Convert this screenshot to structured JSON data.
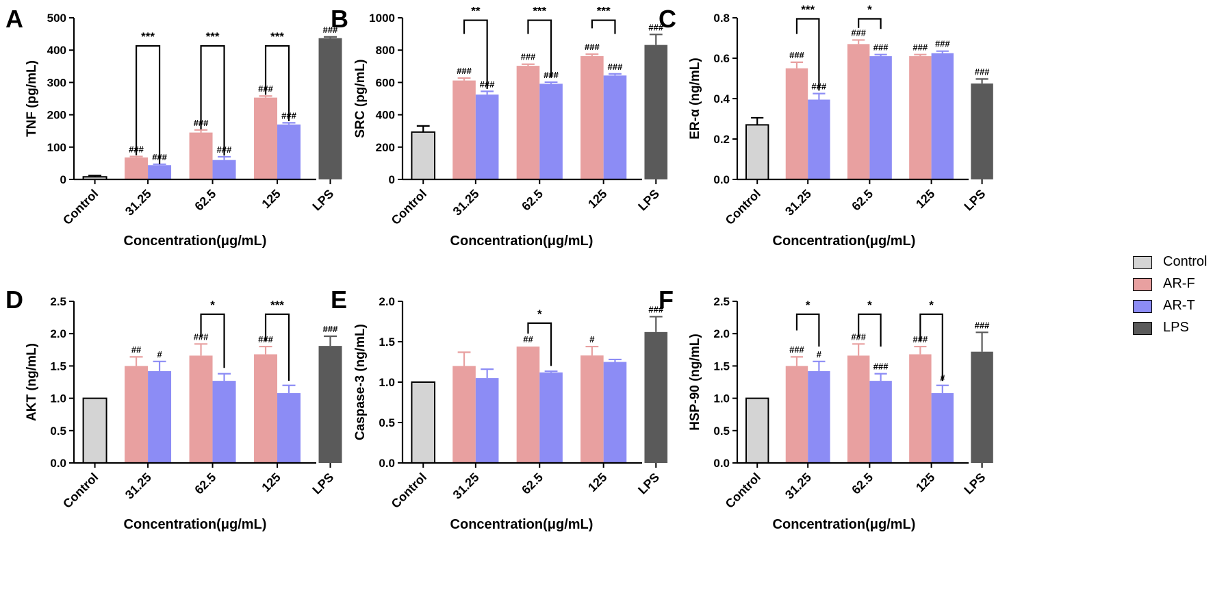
{
  "colors": {
    "Control": "#d4d4d4",
    "AR-F": "#e8a0a0",
    "AR-T": "#8c8cf5",
    "LPS": "#5a5a5a"
  },
  "legend": [
    "Control",
    "AR-F",
    "AR-T",
    "LPS"
  ],
  "chart_data": [
    {
      "panel": "A",
      "type": "bar",
      "ylabel": "TNF (pg/mL)",
      "xlabel": "Concentration(μg/mL)",
      "ylim": [
        0,
        500
      ],
      "yticks": [
        "0",
        "100",
        "200",
        "300",
        "400",
        "500"
      ],
      "categories": [
        "Control",
        "31.25",
        "62.5",
        "125",
        "LPS"
      ],
      "bars": [
        {
          "group": 0,
          "series": "Control",
          "value": 8,
          "err": 4,
          "label": ""
        },
        {
          "group": 1,
          "series": "AR-F",
          "value": 68,
          "err": 3,
          "label": "###"
        },
        {
          "group": 1,
          "series": "AR-T",
          "value": 44,
          "err": 3,
          "label": "###"
        },
        {
          "group": 2,
          "series": "AR-F",
          "value": 145,
          "err": 8,
          "label": "###"
        },
        {
          "group": 2,
          "series": "AR-T",
          "value": 60,
          "err": 10,
          "label": "###"
        },
        {
          "group": 3,
          "series": "AR-F",
          "value": 253,
          "err": 5,
          "label": "###"
        },
        {
          "group": 3,
          "series": "AR-T",
          "value": 170,
          "err": 5,
          "label": "###"
        },
        {
          "group": 4,
          "series": "LPS",
          "value": 437,
          "err": 4,
          "label": "###"
        }
      ],
      "brackets": [
        {
          "group": 1,
          "top": 413,
          "stars": "***",
          "left_bottom": 75,
          "right_bottom": 48
        },
        {
          "group": 2,
          "top": 413,
          "stars": "***",
          "left_bottom": 155,
          "right_bottom": 74
        },
        {
          "group": 3,
          "top": 413,
          "stars": "***",
          "left_bottom": 262,
          "right_bottom": 180
        }
      ]
    },
    {
      "panel": "B",
      "type": "bar",
      "ylabel": "SRC (pg/mL)",
      "xlabel": "Concentration(μg/mL)",
      "ylim": [
        0,
        1000
      ],
      "yticks": [
        "0",
        "200",
        "400",
        "600",
        "800",
        "1000"
      ],
      "categories": [
        "Control",
        "31.25",
        "62.5",
        "125",
        "LPS"
      ],
      "bars": [
        {
          "group": 0,
          "series": "Control",
          "value": 293,
          "err": 38,
          "label": ""
        },
        {
          "group": 1,
          "series": "AR-F",
          "value": 612,
          "err": 15,
          "label": "###"
        },
        {
          "group": 1,
          "series": "AR-T",
          "value": 525,
          "err": 20,
          "label": "###"
        },
        {
          "group": 2,
          "series": "AR-F",
          "value": 703,
          "err": 10,
          "label": "###"
        },
        {
          "group": 2,
          "series": "AR-T",
          "value": 592,
          "err": 10,
          "label": "###"
        },
        {
          "group": 3,
          "series": "AR-F",
          "value": 763,
          "err": 12,
          "label": "###"
        },
        {
          "group": 3,
          "series": "AR-T",
          "value": 643,
          "err": 10,
          "label": "###"
        },
        {
          "group": 4,
          "series": "LPS",
          "value": 832,
          "err": 65,
          "label": "###"
        }
      ],
      "brackets": [
        {
          "group": 1,
          "top": 985,
          "stars": "**",
          "left_bottom": 900,
          "right_bottom": 560
        },
        {
          "group": 2,
          "top": 985,
          "stars": "***",
          "left_bottom": 900,
          "right_bottom": 630
        },
        {
          "group": 3,
          "top": 985,
          "stars": "***",
          "left_bottom": 935,
          "right_bottom": 900
        }
      ]
    },
    {
      "panel": "C",
      "type": "bar",
      "ylabel": "ER-α (ng/mL)",
      "xlabel": "Concentration(μg/mL)",
      "ylim": [
        0,
        0.8
      ],
      "yticks": [
        "0.0",
        "0.2",
        "0.4",
        "0.6",
        "0.8"
      ],
      "categories": [
        "Control",
        "31.25",
        "62.5",
        "125",
        "LPS"
      ],
      "bars": [
        {
          "group": 0,
          "series": "Control",
          "value": 0.27,
          "err": 0.035,
          "label": ""
        },
        {
          "group": 1,
          "series": "AR-F",
          "value": 0.55,
          "err": 0.03,
          "label": "###"
        },
        {
          "group": 1,
          "series": "AR-T",
          "value": 0.395,
          "err": 0.03,
          "label": "###"
        },
        {
          "group": 2,
          "series": "AR-F",
          "value": 0.67,
          "err": 0.02,
          "label": "###"
        },
        {
          "group": 2,
          "series": "AR-T",
          "value": 0.61,
          "err": 0.008,
          "label": "###"
        },
        {
          "group": 3,
          "series": "AR-F",
          "value": 0.61,
          "err": 0.008,
          "label": "###"
        },
        {
          "group": 3,
          "series": "AR-T",
          "value": 0.625,
          "err": 0.01,
          "label": "###"
        },
        {
          "group": 4,
          "series": "LPS",
          "value": 0.475,
          "err": 0.022,
          "label": "###"
        }
      ],
      "brackets": [
        {
          "group": 1,
          "top": 0.795,
          "stars": "***",
          "left_bottom": 0.72,
          "right_bottom": 0.44
        },
        {
          "group": 2,
          "top": 0.795,
          "stars": "*",
          "left_bottom": 0.75,
          "right_bottom": 0.745
        }
      ]
    },
    {
      "panel": "D",
      "type": "bar",
      "ylabel": "AKT (ng/mL)",
      "xlabel": "Concentration(μg/mL)",
      "ylim": [
        0,
        2.5
      ],
      "yticks": [
        "0.0",
        "0.5",
        "1.0",
        "1.5",
        "2.0",
        "2.5"
      ],
      "categories": [
        "Control",
        "31.25",
        "62.5",
        "125",
        "LPS"
      ],
      "bars": [
        {
          "group": 0,
          "series": "Control",
          "value": 1.0,
          "err": 0,
          "label": ""
        },
        {
          "group": 1,
          "series": "AR-F",
          "value": 1.5,
          "err": 0.14,
          "label": "##"
        },
        {
          "group": 1,
          "series": "AR-T",
          "value": 1.42,
          "err": 0.15,
          "label": "#"
        },
        {
          "group": 2,
          "series": "AR-F",
          "value": 1.66,
          "err": 0.18,
          "label": "###"
        },
        {
          "group": 2,
          "series": "AR-T",
          "value": 1.27,
          "err": 0.11,
          "label": ""
        },
        {
          "group": 3,
          "series": "AR-F",
          "value": 1.68,
          "err": 0.12,
          "label": "###"
        },
        {
          "group": 3,
          "series": "AR-T",
          "value": 1.08,
          "err": 0.12,
          "label": ""
        },
        {
          "group": 4,
          "series": "LPS",
          "value": 1.81,
          "err": 0.15,
          "label": "###"
        }
      ],
      "brackets": [
        {
          "group": 2,
          "top": 2.3,
          "stars": "*",
          "left_bottom": 1.95,
          "right_bottom": 1.47
        },
        {
          "group": 3,
          "top": 2.3,
          "stars": "***",
          "left_bottom": 1.88,
          "right_bottom": 1.27
        }
      ]
    },
    {
      "panel": "E",
      "type": "bar",
      "ylabel": "Caspase-3 (ng/mL)",
      "xlabel": "Concentration(μg/mL)",
      "ylim": [
        0,
        2.0
      ],
      "yticks": [
        "0.0",
        "0.5",
        "1.0",
        "1.5",
        "2.0"
      ],
      "categories": [
        "Control",
        "31.25",
        "62.5",
        "125",
        "LPS"
      ],
      "bars": [
        {
          "group": 0,
          "series": "Control",
          "value": 1.0,
          "err": 0,
          "label": ""
        },
        {
          "group": 1,
          "series": "AR-F",
          "value": 1.2,
          "err": 0.17,
          "label": ""
        },
        {
          "group": 1,
          "series": "AR-T",
          "value": 1.05,
          "err": 0.11,
          "label": ""
        },
        {
          "group": 2,
          "series": "AR-F",
          "value": 1.44,
          "err": 0,
          "label": "##"
        },
        {
          "group": 2,
          "series": "AR-T",
          "value": 1.12,
          "err": 0.015,
          "label": ""
        },
        {
          "group": 3,
          "series": "AR-F",
          "value": 1.33,
          "err": 0.11,
          "label": "#"
        },
        {
          "group": 3,
          "series": "AR-T",
          "value": 1.25,
          "err": 0.03,
          "label": ""
        },
        {
          "group": 4,
          "series": "LPS",
          "value": 1.62,
          "err": 0.19,
          "label": "###"
        }
      ],
      "brackets": [
        {
          "group": 2,
          "top": 1.73,
          "stars": "*",
          "left_bottom": 1.6,
          "right_bottom": 1.2
        }
      ]
    },
    {
      "panel": "F",
      "type": "bar",
      "ylabel": "HSP-90 (ng/mL)",
      "xlabel": "Concentration(μg/mL)",
      "ylim": [
        0,
        2.5
      ],
      "yticks": [
        "0.0",
        "0.5",
        "1.0",
        "1.5",
        "2.0",
        "2.5"
      ],
      "categories": [
        "Control",
        "31.25",
        "62.5",
        "125",
        "LPS"
      ],
      "bars": [
        {
          "group": 0,
          "series": "Control",
          "value": 1.0,
          "err": 0,
          "label": ""
        },
        {
          "group": 1,
          "series": "AR-F",
          "value": 1.5,
          "err": 0.14,
          "label": "###"
        },
        {
          "group": 1,
          "series": "AR-T",
          "value": 1.42,
          "err": 0.15,
          "label": "#"
        },
        {
          "group": 2,
          "series": "AR-F",
          "value": 1.66,
          "err": 0.18,
          "label": "###"
        },
        {
          "group": 2,
          "series": "AR-T",
          "value": 1.27,
          "err": 0.11,
          "label": "###"
        },
        {
          "group": 3,
          "series": "AR-F",
          "value": 1.68,
          "err": 0.12,
          "label": "###"
        },
        {
          "group": 3,
          "series": "AR-T",
          "value": 1.08,
          "err": 0.12,
          "label": "#"
        },
        {
          "group": 4,
          "series": "LPS",
          "value": 1.72,
          "err": 0.3,
          "label": "###"
        }
      ],
      "brackets": [
        {
          "group": 1,
          "top": 2.3,
          "stars": "*",
          "left_bottom": 2.05,
          "right_bottom": 1.8
        },
        {
          "group": 2,
          "top": 2.3,
          "stars": "*",
          "left_bottom": 1.95,
          "right_bottom": 1.8
        },
        {
          "group": 3,
          "top": 2.3,
          "stars": "*",
          "left_bottom": 1.88,
          "right_bottom": 1.27
        }
      ]
    }
  ]
}
